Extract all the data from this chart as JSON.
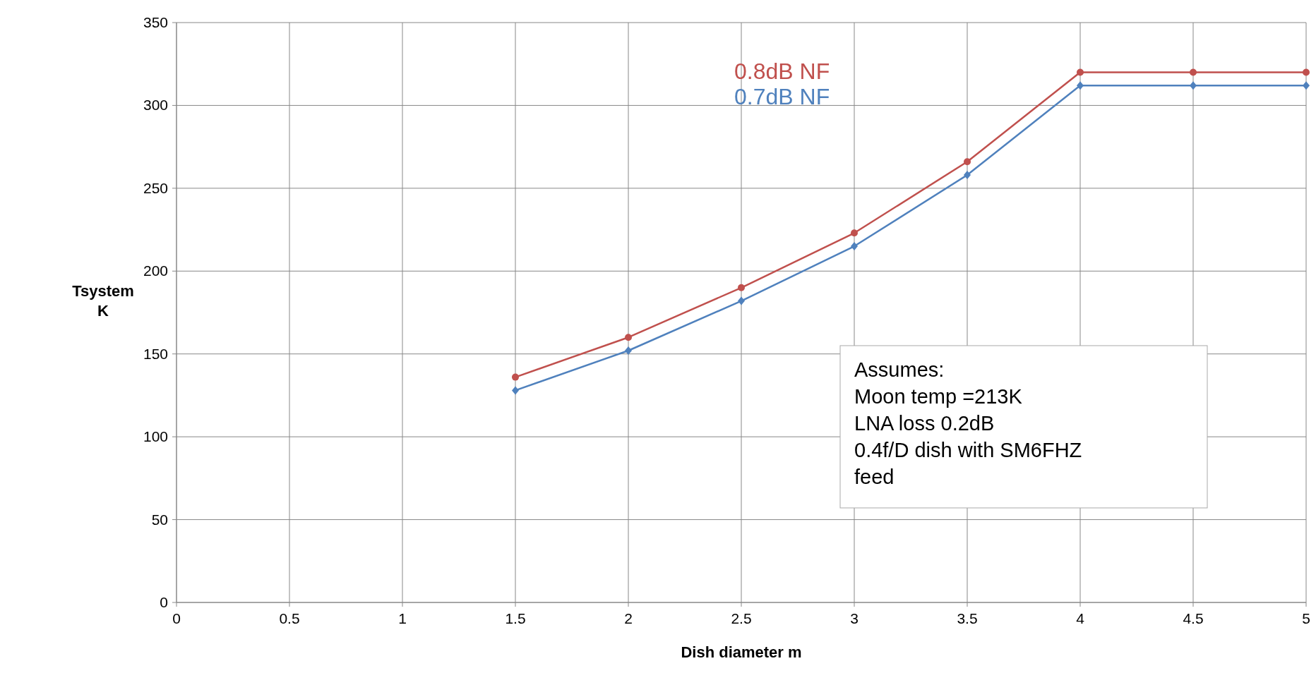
{
  "chart_data": {
    "type": "line",
    "xlabel": "Dish diameter m",
    "ylabel": "Tsystem\nK",
    "x": [
      1.5,
      2,
      2.5,
      3,
      3.5,
      4,
      4.5,
      5
    ],
    "series": [
      {
        "name": "0.8dB NF",
        "color": "#c0504d",
        "marker": "circle",
        "values": [
          136,
          160,
          190,
          223,
          266,
          320,
          320,
          320
        ]
      },
      {
        "name": "0.7dB NF",
        "color": "#4f81bd",
        "marker": "diamond",
        "values": [
          128,
          152,
          182,
          215,
          258,
          312,
          312,
          312
        ]
      }
    ],
    "xlim": [
      0,
      5
    ],
    "xticks": [
      0,
      0.5,
      1,
      1.5,
      2,
      2.5,
      3,
      3.5,
      4,
      4.5,
      5
    ],
    "ylim": [
      0,
      350
    ],
    "yticks": [
      0,
      50,
      100,
      150,
      200,
      250,
      300,
      350
    ],
    "grid": true,
    "legend": "top",
    "line_style": "solid",
    "annotations": [
      "Assumes:\nMoon temp =213K\nLNA loss 0.2dB\n0.4f/D dish with SM6FHZ\nfeed"
    ]
  }
}
